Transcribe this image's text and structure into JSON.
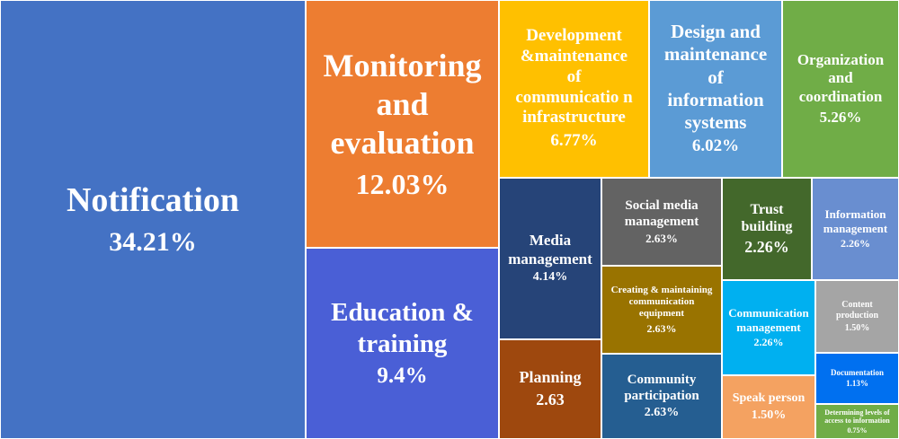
{
  "chart_data": {
    "type": "treemap",
    "title": "",
    "series": [
      {
        "label_lines": [
          "Notification"
        ],
        "value_text": "34.21%",
        "value": 34.21,
        "color": "#4472c4"
      },
      {
        "label_lines": [
          "Monitoring",
          "and",
          "evaluation"
        ],
        "value_text": "12.03%",
        "value": 12.03,
        "color": "#ed7d31"
      },
      {
        "label_lines": [
          "Education &",
          "training"
        ],
        "value_text": "9.4%",
        "value": 9.4,
        "color": "#4a5fd6"
      },
      {
        "label_lines": [
          "Development",
          "&maintenance",
          "of",
          "communicatio n",
          "infrastructure"
        ],
        "value_text": "6.77%",
        "value": 6.77,
        "color": "#ffc000"
      },
      {
        "label_lines": [
          "Design and",
          "maintenance",
          "of",
          "information",
          "systems"
        ],
        "value_text": "6.02%",
        "value": 6.02,
        "color": "#5b9bd5"
      },
      {
        "label_lines": [
          "Organization",
          "and",
          "coordination"
        ],
        "value_text": "5.26%",
        "value": 5.26,
        "color": "#70ad47"
      },
      {
        "label_lines": [
          "Media",
          "management"
        ],
        "value_text": "4.14%",
        "value": 4.14,
        "color": "#264478"
      },
      {
        "label_lines": [
          "Social media",
          "management"
        ],
        "value_text": "2.63%",
        "value": 2.63,
        "color": "#636363"
      },
      {
        "label_lines": [
          "Trust",
          "building"
        ],
        "value_text": "2.26%",
        "value": 2.26,
        "color": "#43682b"
      },
      {
        "label_lines": [
          "Information",
          "management"
        ],
        "value_text": "2.26%",
        "value": 2.26,
        "color": "#698ed0"
      },
      {
        "label_lines": [
          "Creating & maintaining",
          "communication",
          "equipment"
        ],
        "value_text": "2.63%",
        "value": 2.63,
        "color": "#997300"
      },
      {
        "label_lines": [
          "Communication",
          "management"
        ],
        "value_text": "2.26%",
        "value": 2.26,
        "color": "#00b0f0"
      },
      {
        "label_lines": [
          "Content",
          "production"
        ],
        "value_text": "1.50%",
        "value": 1.5,
        "color": "#a5a5a5"
      },
      {
        "label_lines": [
          "Documentation"
        ],
        "value_text": "1.13%",
        "value": 1.13,
        "color": "#0070f0"
      },
      {
        "label_lines": [
          "Planning"
        ],
        "value_text": "2.63",
        "value": 2.63,
        "color": "#9e480e"
      },
      {
        "label_lines": [
          "Community",
          "participation"
        ],
        "value_text": "2.63%",
        "value": 2.63,
        "color": "#255e91"
      },
      {
        "label_lines": [
          "Speak person"
        ],
        "value_text": "1.50%",
        "value": 1.5,
        "color": "#f4a261"
      },
      {
        "label_lines": [
          "Determining levels of",
          "access to information"
        ],
        "value_text": "0.75%",
        "value": 0.75,
        "color": "#70ad47"
      }
    ]
  }
}
